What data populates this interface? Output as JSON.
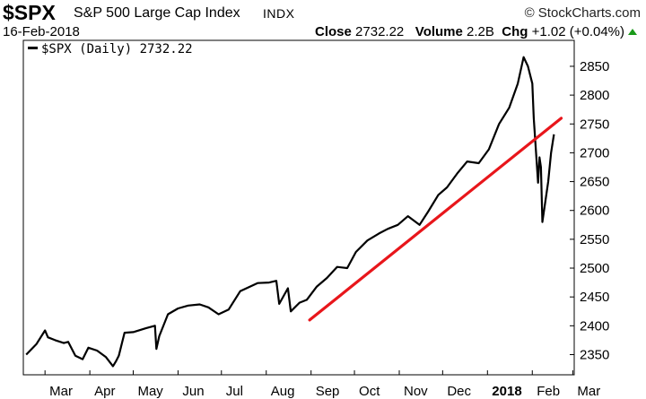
{
  "header": {
    "symbol": "$SPX",
    "name": "S&P 500 Large Cap Index",
    "exchange": "INDX",
    "source": "© StockCharts.com",
    "date": "16-Feb-2018",
    "close_label": "Close",
    "close_value": "2732.22",
    "volume_label": "Volume",
    "volume_value": "2.2B",
    "chg_label": "Chg",
    "chg_value": "+1.02 (+0.04%)"
  },
  "legend": {
    "label": "$SPX (Daily) 2732.22"
  },
  "colors": {
    "price_line": "#000000",
    "trend_line": "#e8161b",
    "up_arrow": "#1a9a1a"
  },
  "chart_data": {
    "type": "line",
    "title": "",
    "xlabel": "",
    "ylabel": "",
    "x_ticks": [
      {
        "label": "Mar",
        "bold": false
      },
      {
        "label": "Apr",
        "bold": false
      },
      {
        "label": "May",
        "bold": false
      },
      {
        "label": "Jun",
        "bold": false
      },
      {
        "label": "Jul",
        "bold": false
      },
      {
        "label": "Aug",
        "bold": false
      },
      {
        "label": "Sep",
        "bold": false
      },
      {
        "label": "Oct",
        "bold": false
      },
      {
        "label": "Nov",
        "bold": false
      },
      {
        "label": "Dec",
        "bold": false
      },
      {
        "label": "2018",
        "bold": true
      },
      {
        "label": "Feb",
        "bold": false
      },
      {
        "label": "Mar",
        "bold": false
      }
    ],
    "y_ticks": [
      2350,
      2400,
      2450,
      2500,
      2550,
      2600,
      2650,
      2700,
      2750,
      2800,
      2850
    ],
    "ylim": [
      2315,
      2895
    ],
    "axis_position": "right",
    "grid": false,
    "legend_position": "top-left",
    "series": [
      {
        "name": "$SPX (Daily)",
        "x": [
          "2017-02-16",
          "2017-02-23",
          "2017-03-01",
          "2017-03-03",
          "2017-03-08",
          "2017-03-14",
          "2017-03-17",
          "2017-03-22",
          "2017-03-27",
          "2017-03-31",
          "2017-04-06",
          "2017-04-12",
          "2017-04-17",
          "2017-04-19",
          "2017-04-21",
          "2017-04-25",
          "2017-05-01",
          "2017-05-10",
          "2017-05-16",
          "2017-05-17",
          "2017-05-19",
          "2017-05-25",
          "2017-06-01",
          "2017-06-08",
          "2017-06-16",
          "2017-06-22",
          "2017-06-29",
          "2017-07-06",
          "2017-07-14",
          "2017-07-26",
          "2017-08-03",
          "2017-08-08",
          "2017-08-10",
          "2017-08-16",
          "2017-08-18",
          "2017-08-24",
          "2017-08-29",
          "2017-09-05",
          "2017-09-12",
          "2017-09-19",
          "2017-09-26",
          "2017-10-02",
          "2017-10-10",
          "2017-10-18",
          "2017-10-24",
          "2017-10-31",
          "2017-11-07",
          "2017-11-15",
          "2017-11-21",
          "2017-11-28",
          "2017-12-04",
          "2017-12-11",
          "2017-12-18",
          "2017-12-26",
          "2018-01-02",
          "2018-01-09",
          "2018-01-16",
          "2018-01-22",
          "2018-01-26",
          "2018-01-29",
          "2018-02-01",
          "2018-02-02",
          "2018-02-05",
          "2018-02-06",
          "2018-02-07",
          "2018-02-08",
          "2018-02-12",
          "2018-02-14",
          "2018-02-16"
        ],
        "values": [
          2350,
          2368,
          2392,
          2380,
          2375,
          2370,
          2372,
          2348,
          2342,
          2362,
          2357,
          2346,
          2330,
          2338,
          2348,
          2388,
          2389,
          2396,
          2400,
          2360,
          2382,
          2420,
          2430,
          2435,
          2437,
          2432,
          2420,
          2428,
          2460,
          2474,
          2475,
          2478,
          2438,
          2465,
          2425,
          2440,
          2445,
          2468,
          2483,
          2502,
          2500,
          2528,
          2548,
          2560,
          2568,
          2575,
          2590,
          2575,
          2598,
          2627,
          2640,
          2664,
          2685,
          2682,
          2706,
          2750,
          2778,
          2820,
          2866,
          2850,
          2820,
          2760,
          2648,
          2692,
          2675,
          2580,
          2650,
          2700,
          2732
        ]
      },
      {
        "name": "trend line",
        "x": [
          "2017-08-31",
          "2018-02-21"
        ],
        "values": [
          2410,
          2760
        ]
      }
    ]
  }
}
